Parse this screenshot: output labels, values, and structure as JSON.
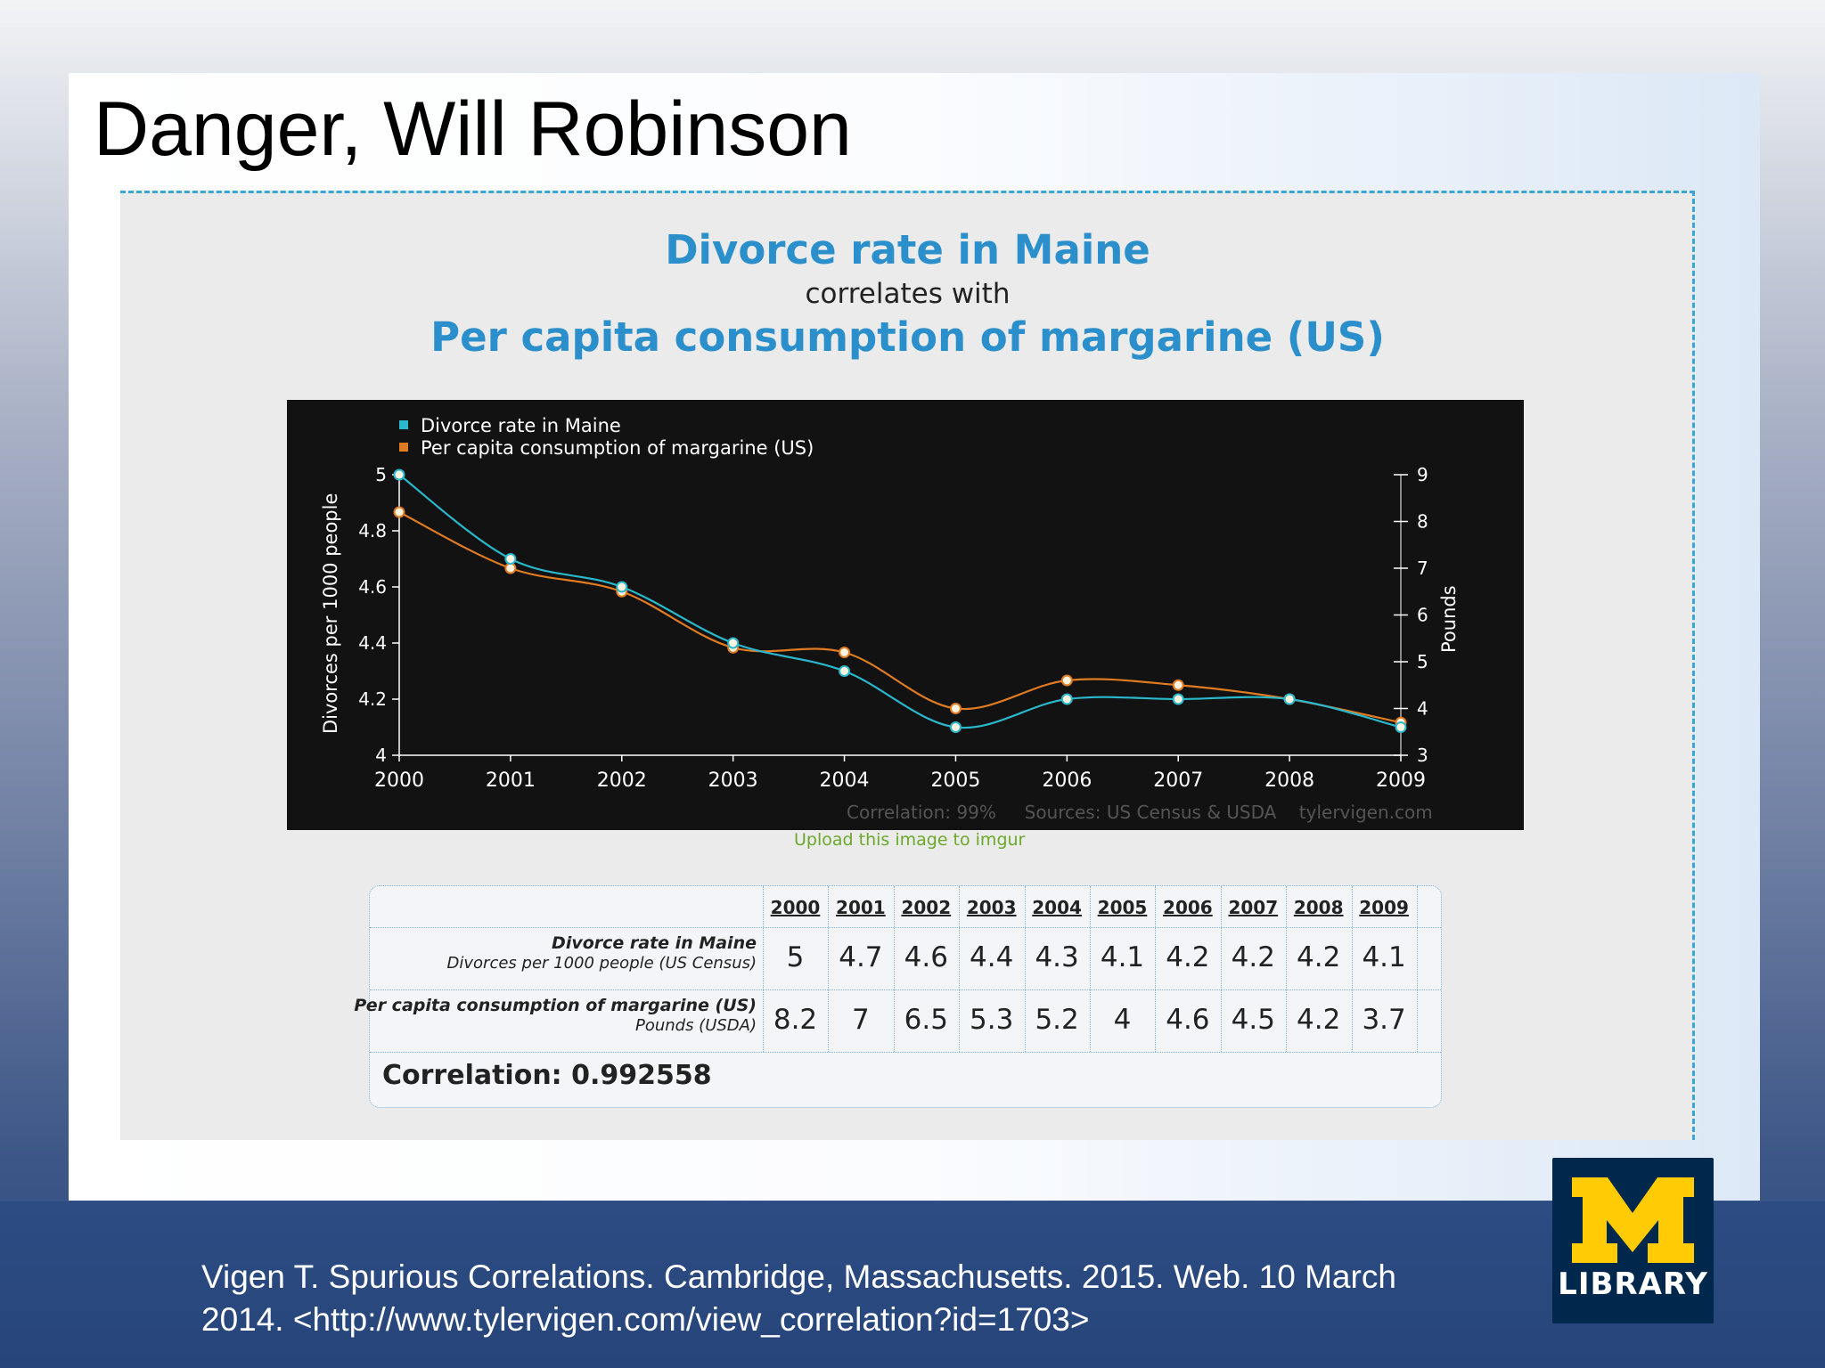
{
  "slide": {
    "title": "Danger, Will Robinson",
    "citation_line1": "Vigen T. Spurious Correlations. Cambridge, Massachusetts. 2015. Web. 10 March",
    "citation_line2": "2014. <http://www.tylervigen.com/view_correlation?id=1703>",
    "logo_text": "LIBRARY",
    "logo_color": "#00274c",
    "logo_accent": "#ffcb05"
  },
  "chart_header": {
    "title_top": "Divorce rate in Maine",
    "correlates": "correlates with",
    "title_bottom": "Per capita consumption of margarine (US)"
  },
  "chart_data": {
    "type": "line",
    "x": [
      2000,
      2001,
      2002,
      2003,
      2004,
      2005,
      2006,
      2007,
      2008,
      2009
    ],
    "series": [
      {
        "name": "Divorce rate in Maine",
        "axis": "left",
        "color": "#29b8cc",
        "values": [
          5,
          4.7,
          4.6,
          4.4,
          4.3,
          4.1,
          4.2,
          4.2,
          4.2,
          4.1
        ]
      },
      {
        "name": "Per capita consumption of margarine (US)",
        "axis": "right",
        "color": "#e07b22",
        "values": [
          8.2,
          7,
          6.5,
          5.3,
          5.2,
          4,
          4.6,
          4.5,
          4.2,
          3.7
        ]
      }
    ],
    "ylabel": "Divorces per 1000 people",
    "y2label": "Pounds",
    "ylim": [
      4,
      5
    ],
    "y2lim": [
      3,
      9
    ],
    "yticks": [
      "4",
      "4.2",
      "4.4",
      "4.6",
      "4.8",
      "5"
    ],
    "y2ticks": [
      "3",
      "4",
      "5",
      "6",
      "7",
      "8",
      "9"
    ],
    "xticks": [
      "2000",
      "2001",
      "2002",
      "2003",
      "2004",
      "2005",
      "2006",
      "2007",
      "2008",
      "2009"
    ],
    "legend_position": "top-left",
    "background": "#121212",
    "footer": "Correlation: 99%     Sources: US Census & USDA    tylervigen.com"
  },
  "upload_link": "Upload this image to imgur",
  "table": {
    "years": [
      "2000",
      "2001",
      "2002",
      "2003",
      "2004",
      "2005",
      "2006",
      "2007",
      "2008",
      "2009"
    ],
    "row1_label_1": "Divorce rate in Maine",
    "row1_label_2": "Divorces per 1000 people (US Census)",
    "row1_values": [
      "5",
      "4.7",
      "4.6",
      "4.4",
      "4.3",
      "4.1",
      "4.2",
      "4.2",
      "4.2",
      "4.1"
    ],
    "row2_label_1": "Per capita consumption of margarine (US)",
    "row2_label_2": "Pounds (USDA)",
    "row2_values": [
      "8.2",
      "7",
      "6.5",
      "5.3",
      "5.2",
      "4",
      "4.6",
      "4.5",
      "4.2",
      "3.7"
    ],
    "correlation": "Correlation: 0.992558"
  }
}
